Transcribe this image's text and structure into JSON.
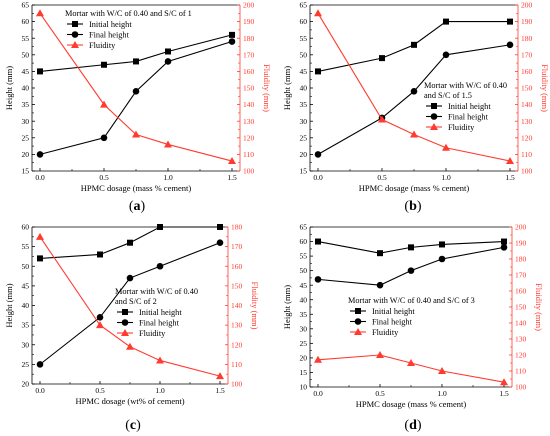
{
  "chart_data": [
    {
      "type": "line",
      "panel_label": "(a)",
      "xlabel": "HPMC dosage (mass % cement)",
      "ylabel": "Height (mm)",
      "y2label": "Fluidity (mm)",
      "legend_title": "Mortar with W/C of 0.40 and S/C of 1",
      "x": [
        0.0,
        0.5,
        0.75,
        1.0,
        1.5
      ],
      "xticks": [
        "0.0",
        "0.5",
        "1.0",
        "1.5"
      ],
      "ylim": [
        15,
        65
      ],
      "yticks": [
        "15",
        "20",
        "25",
        "30",
        "35",
        "40",
        "45",
        "50",
        "55",
        "60",
        "65"
      ],
      "y2lim": [
        100,
        200
      ],
      "y2ticks": [
        "100",
        "110",
        "120",
        "130",
        "140",
        "150",
        "160",
        "170",
        "180",
        "190",
        "200"
      ],
      "series": [
        {
          "name": "Initial height",
          "axis": "left",
          "marker": "square",
          "color": "#000000",
          "values": [
            45,
            47,
            48,
            51,
            56
          ]
        },
        {
          "name": "Final height",
          "axis": "left",
          "marker": "circle",
          "color": "#000000",
          "values": [
            20,
            25,
            39,
            48,
            54
          ]
        },
        {
          "name": "Fluidity",
          "axis": "right",
          "marker": "triangle",
          "color": "#ff3b30",
          "values": [
            195,
            140,
            122,
            116,
            106
          ]
        }
      ]
    },
    {
      "type": "line",
      "panel_label": "(b)",
      "xlabel": "HPMC dosage (mass % cement)",
      "ylabel": "Height (mm)",
      "y2label": "Fluidity (mm)",
      "legend_title": "Mortar with W/C of 0.40 and S/C of 1.5",
      "x": [
        0.0,
        0.5,
        0.75,
        1.0,
        1.5
      ],
      "xticks": [
        "0.0",
        "0.5",
        "1.0",
        "1.5"
      ],
      "ylim": [
        15,
        65
      ],
      "yticks": [
        "15",
        "20",
        "25",
        "30",
        "35",
        "40",
        "45",
        "50",
        "55",
        "60",
        "65"
      ],
      "y2lim": [
        100,
        200
      ],
      "y2ticks": [
        "100",
        "110",
        "120",
        "130",
        "140",
        "150",
        "160",
        "170",
        "180",
        "190",
        "200"
      ],
      "series": [
        {
          "name": "Initial height",
          "axis": "left",
          "marker": "square",
          "color": "#000000",
          "values": [
            45,
            49,
            53,
            60,
            60
          ]
        },
        {
          "name": "Final height",
          "axis": "left",
          "marker": "circle",
          "color": "#000000",
          "values": [
            20,
            31,
            39,
            50,
            53
          ]
        },
        {
          "name": "Fluidity",
          "axis": "right",
          "marker": "triangle",
          "color": "#ff3b30",
          "values": [
            195,
            131,
            122,
            114,
            106
          ]
        }
      ]
    },
    {
      "type": "line",
      "panel_label": "(c)",
      "xlabel": "HPMC dosage (wt% of cement)",
      "ylabel": "Height (mm)",
      "y2label": "Fluidity (mm)",
      "legend_title": "Mortar with W/C of 0.40 and S/C of 2",
      "x": [
        0.0,
        0.5,
        0.75,
        1.0,
        1.5
      ],
      "xticks": [
        "0.0",
        "0.5",
        "1.0",
        "1.5"
      ],
      "ylim": [
        20,
        60
      ],
      "yticks": [
        "20",
        "25",
        "30",
        "35",
        "40",
        "45",
        "50",
        "55",
        "60"
      ],
      "y2lim": [
        100,
        180
      ],
      "y2ticks": [
        "100",
        "110",
        "120",
        "130",
        "140",
        "150",
        "160",
        "170",
        "180"
      ],
      "series": [
        {
          "name": "Initial height",
          "axis": "left",
          "marker": "square",
          "color": "#000000",
          "values": [
            52,
            53,
            56,
            60,
            60
          ]
        },
        {
          "name": "Final height",
          "axis": "left",
          "marker": "circle",
          "color": "#000000",
          "values": [
            25,
            37,
            47,
            50,
            56
          ]
        },
        {
          "name": "Fluidity",
          "axis": "right",
          "marker": "triangle",
          "color": "#ff3b30",
          "values": [
            175,
            130,
            119,
            112,
            104
          ]
        }
      ]
    },
    {
      "type": "line",
      "panel_label": "(d)",
      "xlabel": "HPMC dosage (mass % cement)",
      "ylabel": "Height (mm)",
      "y2label": "Fluidity (mm)",
      "legend_title": "Mortar with W/C of 0.40 and S/C of 3",
      "x": [
        0.0,
        0.5,
        0.75,
        1.0,
        1.5
      ],
      "xticks": [
        "0.0",
        "0.5",
        "1.0",
        "1.5"
      ],
      "ylim": [
        10,
        65
      ],
      "yticks": [
        "10",
        "15",
        "20",
        "25",
        "30",
        "35",
        "40",
        "45",
        "50",
        "55",
        "60",
        "65"
      ],
      "y2lim": [
        100,
        200
      ],
      "y2ticks": [
        "100",
        "110",
        "120",
        "130",
        "140",
        "150",
        "160",
        "170",
        "180",
        "190",
        "200"
      ],
      "series": [
        {
          "name": "Initial height",
          "axis": "left",
          "marker": "square",
          "color": "#000000",
          "values": [
            60,
            56,
            58,
            59,
            60
          ]
        },
        {
          "name": "Final height",
          "axis": "left",
          "marker": "circle",
          "color": "#000000",
          "values": [
            47,
            45,
            50,
            54,
            58
          ]
        },
        {
          "name": "Fluidity",
          "axis": "right",
          "marker": "triangle",
          "color": "#ff3b30",
          "values": [
            117,
            120,
            115,
            110,
            103
          ]
        }
      ]
    }
  ]
}
